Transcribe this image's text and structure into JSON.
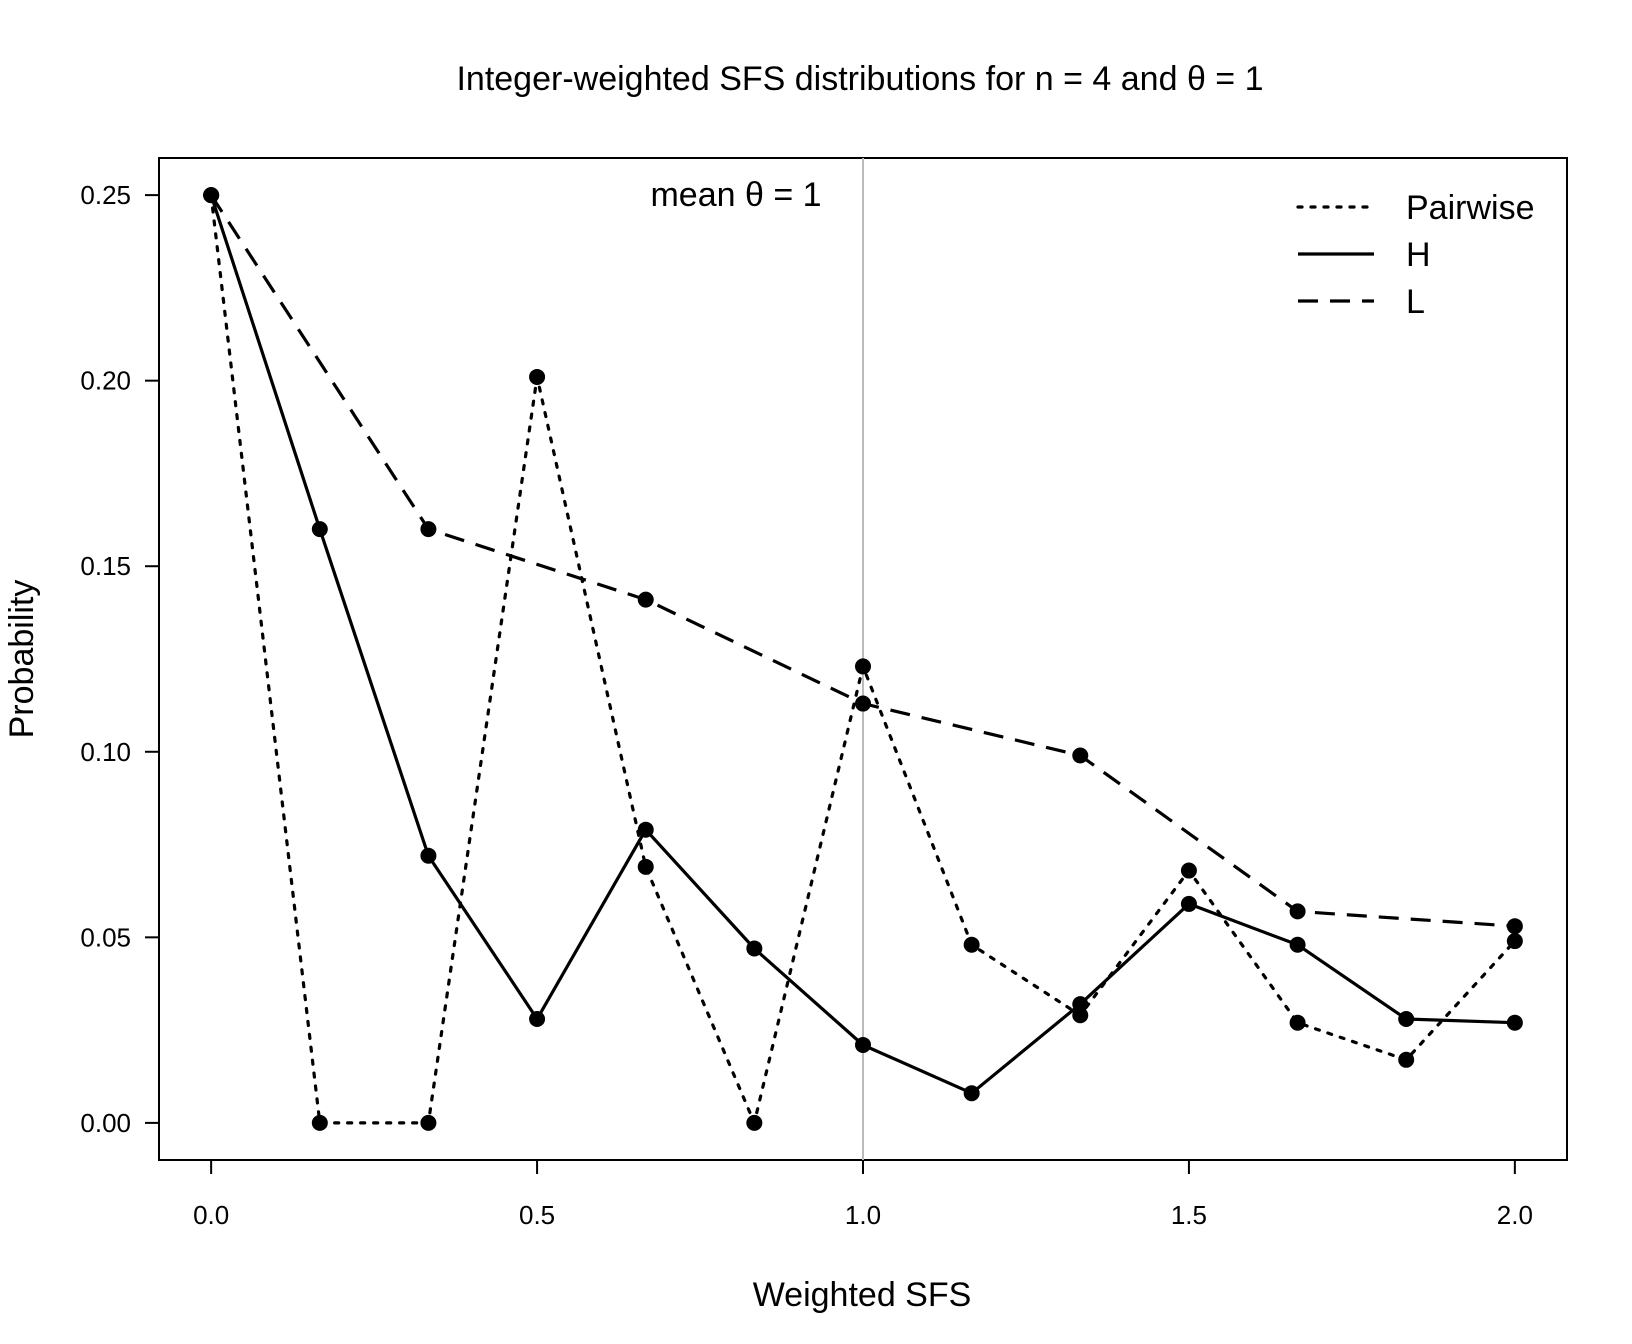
{
  "chart_data": {
    "type": "line",
    "title": "Integer-weighted SFS distributions for n = 4 and θ = 1",
    "xlabel": "Weighted SFS",
    "ylabel": "Probability",
    "xlim": [
      -0.08,
      2.08
    ],
    "ylim": [
      -0.01,
      0.26
    ],
    "x_ticks": [
      {
        "value": 0.0,
        "label": "0.0"
      },
      {
        "value": 0.5,
        "label": "0.5"
      },
      {
        "value": 1.0,
        "label": "1.0"
      },
      {
        "value": 1.5,
        "label": "1.5"
      },
      {
        "value": 2.0,
        "label": "2.0"
      }
    ],
    "y_ticks": [
      {
        "value": 0.0,
        "label": "0.00"
      },
      {
        "value": 0.05,
        "label": "0.05"
      },
      {
        "value": 0.1,
        "label": "0.10"
      },
      {
        "value": 0.15,
        "label": "0.15"
      },
      {
        "value": 0.2,
        "label": "0.20"
      },
      {
        "value": 0.25,
        "label": "0.25"
      }
    ],
    "grid": false,
    "legend_position": "top-right",
    "vline": {
      "x": 1.0,
      "label": "mean θ = 1",
      "color": "#bbbbbb"
    },
    "series": [
      {
        "name": "Pairwise",
        "style": "dotted",
        "color": "#000000",
        "x": [
          0.0,
          0.1667,
          0.3333,
          0.5,
          0.6667,
          0.8333,
          1.0,
          1.1667,
          1.3333,
          1.5,
          1.6667,
          1.8333,
          2.0
        ],
        "y": [
          0.25,
          0.0,
          0.0,
          0.201,
          0.069,
          0.0,
          0.123,
          0.048,
          0.029,
          0.068,
          0.027,
          0.017,
          0.049
        ]
      },
      {
        "name": "H",
        "style": "solid",
        "color": "#000000",
        "x": [
          0.0,
          0.1667,
          0.3333,
          0.5,
          0.6667,
          0.8333,
          1.0,
          1.1667,
          1.3333,
          1.5,
          1.6667,
          1.8333,
          2.0
        ],
        "y": [
          0.25,
          0.16,
          0.072,
          0.028,
          0.079,
          0.047,
          0.021,
          0.008,
          0.032,
          0.059,
          0.048,
          0.028,
          0.027
        ]
      },
      {
        "name": "L",
        "style": "dashed",
        "color": "#000000",
        "x": [
          0.0,
          0.3333,
          0.6667,
          1.0,
          1.3333,
          1.6667,
          2.0
        ],
        "y": [
          0.25,
          0.16,
          0.141,
          0.113,
          0.099,
          0.057,
          0.053
        ]
      }
    ]
  }
}
